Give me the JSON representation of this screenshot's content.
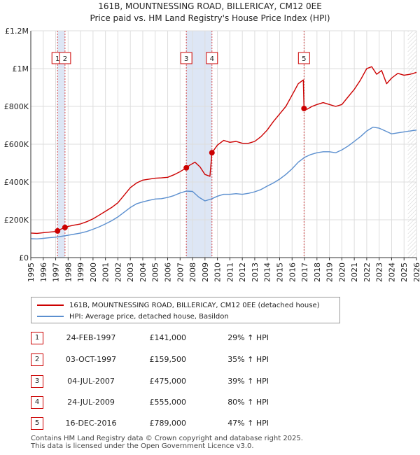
{
  "chart_data": {
    "type": "line",
    "title": "161B, MOUNTNESSING ROAD, BILLERICAY, CM12 0EE",
    "subtitle": "Price paid vs. HM Land Registry's House Price Index (HPI)",
    "xlim": [
      1995,
      2026
    ],
    "ylim": [
      0,
      1200000
    ],
    "x_ticks": [
      "1995",
      "1996",
      "1997",
      "1998",
      "1999",
      "2000",
      "2001",
      "2002",
      "2003",
      "2004",
      "2005",
      "2006",
      "2007",
      "2008",
      "2009",
      "2010",
      "2011",
      "2012",
      "2013",
      "2014",
      "2015",
      "2016",
      "2017",
      "2018",
      "2019",
      "2020",
      "2021",
      "2022",
      "2023",
      "2024",
      "2025",
      "2026"
    ],
    "y_ticks": [
      {
        "value": 0,
        "label": "£0"
      },
      {
        "value": 200000,
        "label": "£200K"
      },
      {
        "value": 400000,
        "label": "£400K"
      },
      {
        "value": 600000,
        "label": "£600K"
      },
      {
        "value": 800000,
        "label": "£800K"
      },
      {
        "value": 1000000,
        "label": "£1M"
      },
      {
        "value": 1200000,
        "label": "£1.2M"
      }
    ],
    "shaded_spans": [
      [
        1997.15,
        1997.75
      ],
      [
        2007.5,
        2009.56
      ]
    ],
    "forecast_start": 2025.3,
    "colors": {
      "property": "#cc0000",
      "hpi": "#5b8fcf",
      "span": "#dde6f5",
      "grid": "#dddddd",
      "marker_line": "#cc0000"
    },
    "series": [
      {
        "name": "161B, MOUNTNESSING ROAD, BILLERICAY, CM12 0EE (detached house)",
        "x": [
          1995.0,
          1995.5,
          1996.0,
          1996.5,
          1997.0,
          1997.15,
          1997.4,
          1997.75,
          1998.0,
          1998.5,
          1999.0,
          1999.5,
          2000.0,
          2000.5,
          2001.0,
          2001.5,
          2002.0,
          2002.5,
          2003.0,
          2003.5,
          2004.0,
          2004.5,
          2005.0,
          2005.5,
          2006.0,
          2006.5,
          2007.0,
          2007.5,
          2007.8,
          2008.2,
          2008.6,
          2009.0,
          2009.4,
          2009.56,
          2010.0,
          2010.5,
          2011.0,
          2011.5,
          2012.0,
          2012.5,
          2013.0,
          2013.5,
          2014.0,
          2014.5,
          2015.0,
          2015.5,
          2016.0,
          2016.5,
          2016.9,
          2016.96,
          2017.2,
          2017.6,
          2018.0,
          2018.5,
          2019.0,
          2019.5,
          2020.0,
          2020.5,
          2021.0,
          2021.5,
          2022.0,
          2022.4,
          2022.8,
          2023.2,
          2023.6,
          2024.0,
          2024.5,
          2025.0,
          2025.5,
          2026.0
        ],
        "y": [
          130000,
          128000,
          132000,
          135000,
          138000,
          141000,
          150000,
          159500,
          165000,
          172000,
          178000,
          190000,
          205000,
          225000,
          245000,
          265000,
          290000,
          330000,
          370000,
          395000,
          410000,
          415000,
          420000,
          422000,
          425000,
          438000,
          455000,
          475000,
          490000,
          505000,
          480000,
          440000,
          430000,
          555000,
          595000,
          620000,
          610000,
          615000,
          605000,
          605000,
          615000,
          640000,
          675000,
          720000,
          760000,
          800000,
          860000,
          920000,
          940000,
          789000,
          785000,
          800000,
          810000,
          820000,
          810000,
          800000,
          810000,
          850000,
          890000,
          940000,
          1000000,
          1010000,
          970000,
          990000,
          920000,
          950000,
          975000,
          965000,
          970000,
          980000
        ]
      },
      {
        "name": "HPI: Average price, detached house, Basildon",
        "x": [
          1995.0,
          1995.5,
          1996.0,
          1996.5,
          1997.0,
          1997.5,
          1998.0,
          1998.5,
          1999.0,
          1999.5,
          2000.0,
          2000.5,
          2001.0,
          2001.5,
          2002.0,
          2002.5,
          2003.0,
          2003.5,
          2004.0,
          2004.5,
          2005.0,
          2005.5,
          2006.0,
          2006.5,
          2007.0,
          2007.5,
          2008.0,
          2008.5,
          2009.0,
          2009.5,
          2010.0,
          2010.5,
          2011.0,
          2011.5,
          2012.0,
          2012.5,
          2013.0,
          2013.5,
          2014.0,
          2014.5,
          2015.0,
          2015.5,
          2016.0,
          2016.5,
          2017.0,
          2017.5,
          2018.0,
          2018.5,
          2019.0,
          2019.5,
          2020.0,
          2020.5,
          2021.0,
          2021.5,
          2022.0,
          2022.5,
          2023.0,
          2023.5,
          2024.0,
          2024.5,
          2025.0,
          2025.5,
          2026.0
        ],
        "y": [
          100000,
          99000,
          102000,
          105000,
          108000,
          113000,
          118000,
          124000,
          130000,
          138000,
          150000,
          163000,
          178000,
          195000,
          215000,
          240000,
          265000,
          285000,
          295000,
          303000,
          310000,
          312000,
          318000,
          328000,
          342000,
          352000,
          350000,
          320000,
          300000,
          310000,
          325000,
          335000,
          335000,
          338000,
          335000,
          340000,
          348000,
          360000,
          378000,
          395000,
          415000,
          440000,
          470000,
          505000,
          530000,
          545000,
          555000,
          560000,
          560000,
          555000,
          570000,
          590000,
          615000,
          640000,
          670000,
          690000,
          685000,
          670000,
          655000,
          660000,
          665000,
          670000,
          675000
        ]
      }
    ],
    "markers": [
      {
        "label": "1",
        "x": 1997.15,
        "y": 141000
      },
      {
        "label": "2",
        "x": 1997.75,
        "y": 159500
      },
      {
        "label": "3",
        "x": 2007.5,
        "y": 475000
      },
      {
        "label": "4",
        "x": 2009.56,
        "y": 555000
      },
      {
        "label": "5",
        "x": 2016.96,
        "y": 789000
      }
    ]
  },
  "legend": {
    "property_label": "161B, MOUNTNESSING ROAD, BILLERICAY, CM12 0EE (detached house)",
    "hpi_label": "HPI: Average price, detached house, Basildon"
  },
  "transactions": [
    {
      "num": "1",
      "date": "24-FEB-1997",
      "price": "£141,000",
      "hpi": "29% ↑ HPI"
    },
    {
      "num": "2",
      "date": "03-OCT-1997",
      "price": "£159,500",
      "hpi": "35% ↑ HPI"
    },
    {
      "num": "3",
      "date": "04-JUL-2007",
      "price": "£475,000",
      "hpi": "39% ↑ HPI"
    },
    {
      "num": "4",
      "date": "24-JUL-2009",
      "price": "£555,000",
      "hpi": "80% ↑ HPI"
    },
    {
      "num": "5",
      "date": "16-DEC-2016",
      "price": "£789,000",
      "hpi": "47% ↑ HPI"
    }
  ],
  "footer": {
    "line1": "Contains HM Land Registry data © Crown copyright and database right 2025.",
    "line2": "This data is licensed under the Open Government Licence v3.0."
  }
}
